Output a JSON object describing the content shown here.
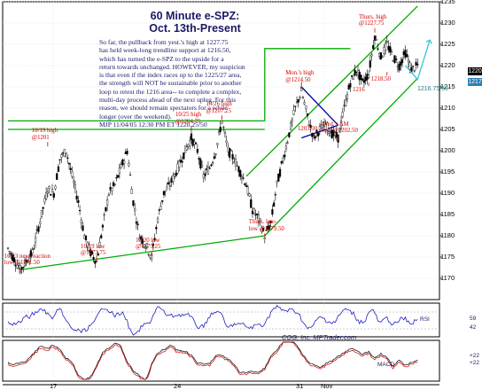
{
  "chart_data": {
    "type": "candlestick",
    "title": [
      "60 Minute e-SPZ:",
      "Oct. 13th-Present"
    ],
    "commentary": [
      "So far, the pullback from yest.'s high at 1227.75",
      "has held week-long trendline support at 1216.50,",
      "which has turned the e-SPZ to the upside for a",
      "return towards unchanged. HOWEVER, my suspicion",
      "is that even if the index races up to the 1225/27 area,",
      "the strength will NOT be sustainable prior to another",
      "loop to retest the 1216 area-- to complete a complex,",
      "multi-day process ahead of the next upleg. For this",
      "reason, we should remain spectators for a while",
      "longer (over the weekend).",
      "MJP  11/04/05  12:30 PM ET 1220.25/50"
    ],
    "y_axis": {
      "range": [
        1165,
        1235
      ],
      "ticks": [
        1235,
        1230,
        1225,
        1220,
        1215,
        1210,
        1205,
        1200,
        1195,
        1190,
        1185,
        1180,
        1175,
        1170
      ]
    },
    "x_axis": {
      "labels": [
        "17",
        "24",
        "31",
        "Nov"
      ]
    },
    "price_path": [
      [
        0,
        1177
      ],
      [
        4,
        1172
      ],
      [
        8,
        1176
      ],
      [
        11,
        1185
      ],
      [
        13,
        1191
      ],
      [
        15,
        1190
      ],
      [
        17,
        1198
      ],
      [
        19,
        1200
      ],
      [
        21,
        1194
      ],
      [
        23,
        1188
      ],
      [
        25,
        1180
      ],
      [
        27,
        1176
      ],
      [
        29,
        1174
      ],
      [
        31,
        1182
      ],
      [
        33,
        1190
      ],
      [
        35,
        1192
      ],
      [
        37,
        1196
      ],
      [
        39,
        1200
      ],
      [
        41,
        1188
      ],
      [
        43,
        1180
      ],
      [
        45,
        1178
      ],
      [
        47,
        1175
      ],
      [
        49,
        1184
      ],
      [
        51,
        1190
      ],
      [
        53,
        1192
      ],
      [
        55,
        1195
      ],
      [
        58,
        1200
      ],
      [
        60,
        1203
      ],
      [
        62,
        1200
      ],
      [
        64,
        1194
      ],
      [
        66,
        1196
      ],
      [
        68,
        1200
      ],
      [
        70,
        1207
      ],
      [
        72,
        1200
      ],
      [
        74,
        1198
      ],
      [
        76,
        1195
      ],
      [
        78,
        1192
      ],
      [
        80,
        1186
      ],
      [
        82,
        1184
      ],
      [
        84,
        1180
      ],
      [
        86,
        1183
      ],
      [
        88,
        1192
      ],
      [
        90,
        1198
      ],
      [
        92,
        1204
      ],
      [
        94,
        1210
      ],
      [
        96,
        1214
      ],
      [
        98,
        1208
      ],
      [
        100,
        1203
      ],
      [
        102,
        1205
      ],
      [
        104,
        1206
      ],
      [
        106,
        1204
      ],
      [
        108,
        1203
      ],
      [
        110,
        1210
      ],
      [
        112,
        1216
      ],
      [
        114,
        1219
      ],
      [
        116,
        1216
      ],
      [
        118,
        1218
      ],
      [
        120,
        1227
      ],
      [
        122,
        1222
      ],
      [
        124,
        1225
      ],
      [
        126,
        1222
      ],
      [
        128,
        1220
      ],
      [
        130,
        1223
      ],
      [
        132,
        1219
      ],
      [
        134,
        1220
      ]
    ],
    "trendlines": [
      {
        "name": "week-long support",
        "from": [
          4,
          1172
        ],
        "to": [
          84,
          1180
        ],
        "color": "#00aa00"
      },
      {
        "name": "channel bottom",
        "from": [
          84,
          1180
        ],
        "to": [
          134,
          1217
        ],
        "color": "#00aa00"
      },
      {
        "name": "channel top",
        "from": [
          78,
          1194
        ],
        "to": [
          134,
          1234
        ],
        "color": "#00aa00"
      },
      {
        "name": "horizontal 1207",
        "from": [
          0,
          1207
        ],
        "to": [
          84,
          1207
        ],
        "color": "#00aa00"
      },
      {
        "name": "horizontal 1205",
        "from": [
          0,
          1205
        ],
        "to": [
          84,
          1205
        ],
        "color": "#00aa00"
      },
      {
        "name": "triangle upper",
        "from": [
          96,
          1215
        ],
        "to": [
          108,
          1206
        ],
        "color": "#0000aa"
      },
      {
        "name": "triangle lower",
        "from": [
          96,
          1203
        ],
        "to": [
          108,
          1206
        ],
        "color": "#0000aa"
      }
    ],
    "horizontal_levels": [
      {
        "value": 1207.25,
        "color": "#00aa00"
      },
      {
        "value": 1205,
        "color": "#00aa00"
      }
    ],
    "projection": {
      "points": [
        [
          130,
          1220
        ],
        [
          134,
          1216.75
        ],
        [
          138,
          1226
        ]
      ],
      "label": "1216.75/50",
      "color": "#40c8d8"
    },
    "annotations": [
      {
        "lines": [
          "10/13  new reaction",
          "low @1171.50"
        ],
        "x": 4,
        "y": 1171.5
      },
      {
        "lines": [
          "10/19 high",
          "@1201"
        ],
        "x": 13,
        "y": 1201
      },
      {
        "lines": [
          "10/19 low",
          "@1173.75"
        ],
        "x": 29,
        "y": 1173.75
      },
      {
        "lines": [
          "10/20 low",
          "@1175.25"
        ],
        "x": 47,
        "y": 1175.25
      },
      {
        "lines": [
          "10/25 high",
          "@1204.75"
        ],
        "x": 60,
        "y": 1204.75
      },
      {
        "lines": [
          "10/26 high",
          "@1207.25"
        ],
        "x": 70,
        "y": 1207.25
      },
      {
        "lines": [
          "Thurs. late-",
          "low @1179.50"
        ],
        "x": 84,
        "y": 1179.5
      },
      {
        "lines": [
          "Mon.'s high",
          "@1214.50"
        ],
        "x": 96,
        "y": 1214.5
      },
      {
        "lines": [
          "1203.00"
        ],
        "x": 100,
        "y": 1203
      },
      {
        "lines": [
          "Wed.'s AM",
          "low @1202.50"
        ],
        "x": 108,
        "y": 1202.5
      },
      {
        "lines": [
          "Thurs. high",
          "@1227.75"
        ],
        "x": 120,
        "y": 1227.75
      },
      {
        "lines": [
          "1218.50"
        ],
        "x": 124,
        "y": 1218.5
      },
      {
        "lines": [
          "1216"
        ],
        "x": 118,
        "y": 1216
      }
    ],
    "current_price": [
      1220,
      1217
    ],
    "indicators": [
      {
        "name": "RSI",
        "right_labels": [
          "59",
          "42"
        ]
      },
      {
        "name": "MACD",
        "right_labels": [
          "+22",
          "+22"
        ]
      }
    ],
    "credit": "CQG, Inc. MPTrader.com"
  }
}
